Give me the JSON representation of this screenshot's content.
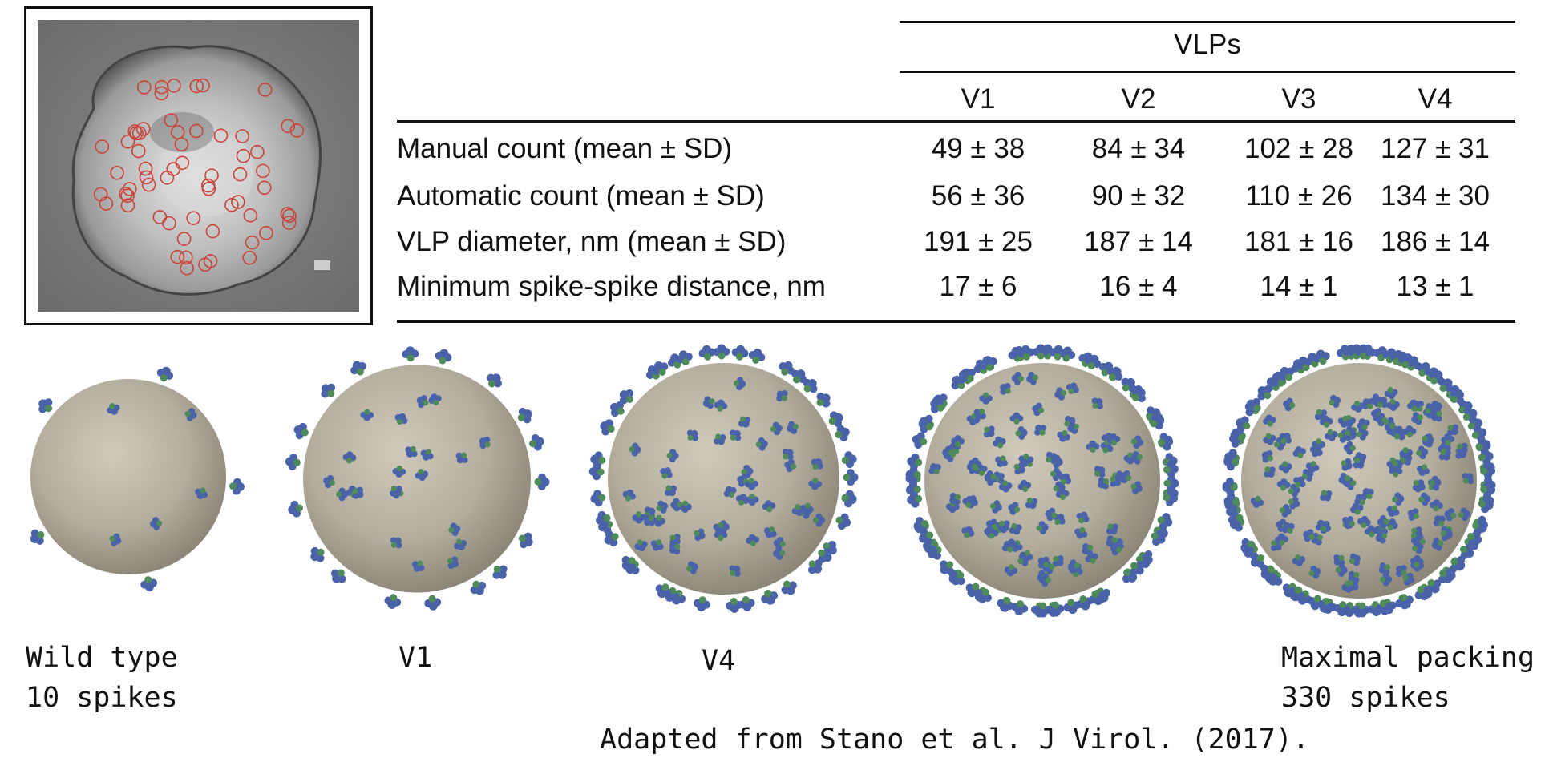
{
  "table": {
    "group_header": "VLPs",
    "columns": [
      "V1",
      "V2",
      "V3",
      "V4"
    ],
    "rows": [
      {
        "label": "Manual count (mean ± SD)",
        "values": [
          "49 ± 38",
          "84 ± 34",
          "102 ± 28",
          "127 ± 31"
        ]
      },
      {
        "label": "Automatic count (mean ± SD)",
        "values": [
          "56 ± 36",
          "90 ± 32",
          "110 ± 26",
          "134 ± 30"
        ]
      },
      {
        "label": "VLP diameter, nm (mean ± SD)",
        "values": [
          "191 ± 25",
          "187 ± 14",
          "181 ± 16",
          "186 ± 14"
        ]
      },
      {
        "label": "Minimum spike-spike distance, nm",
        "values": [
          "17 ± 6",
          "16 ± 4",
          "14 ± 1",
          "13 ± 1"
        ]
      }
    ]
  },
  "captions": {
    "wild_type_line1": "Wild type",
    "wild_type_line2": "10 spikes",
    "v1": "V1",
    "v4": "V4",
    "max_line1": "Maximal packing",
    "max_line2": "330 spikes"
  },
  "citation": "Adapted from Stano et al. J Virol. (2017).",
  "colors": {
    "sphere": "#b6b1a3",
    "spike_blue": "#4a63a8",
    "spike_green": "#4f8a5a",
    "em_marker": "#c9433a",
    "rule": "#111111"
  }
}
